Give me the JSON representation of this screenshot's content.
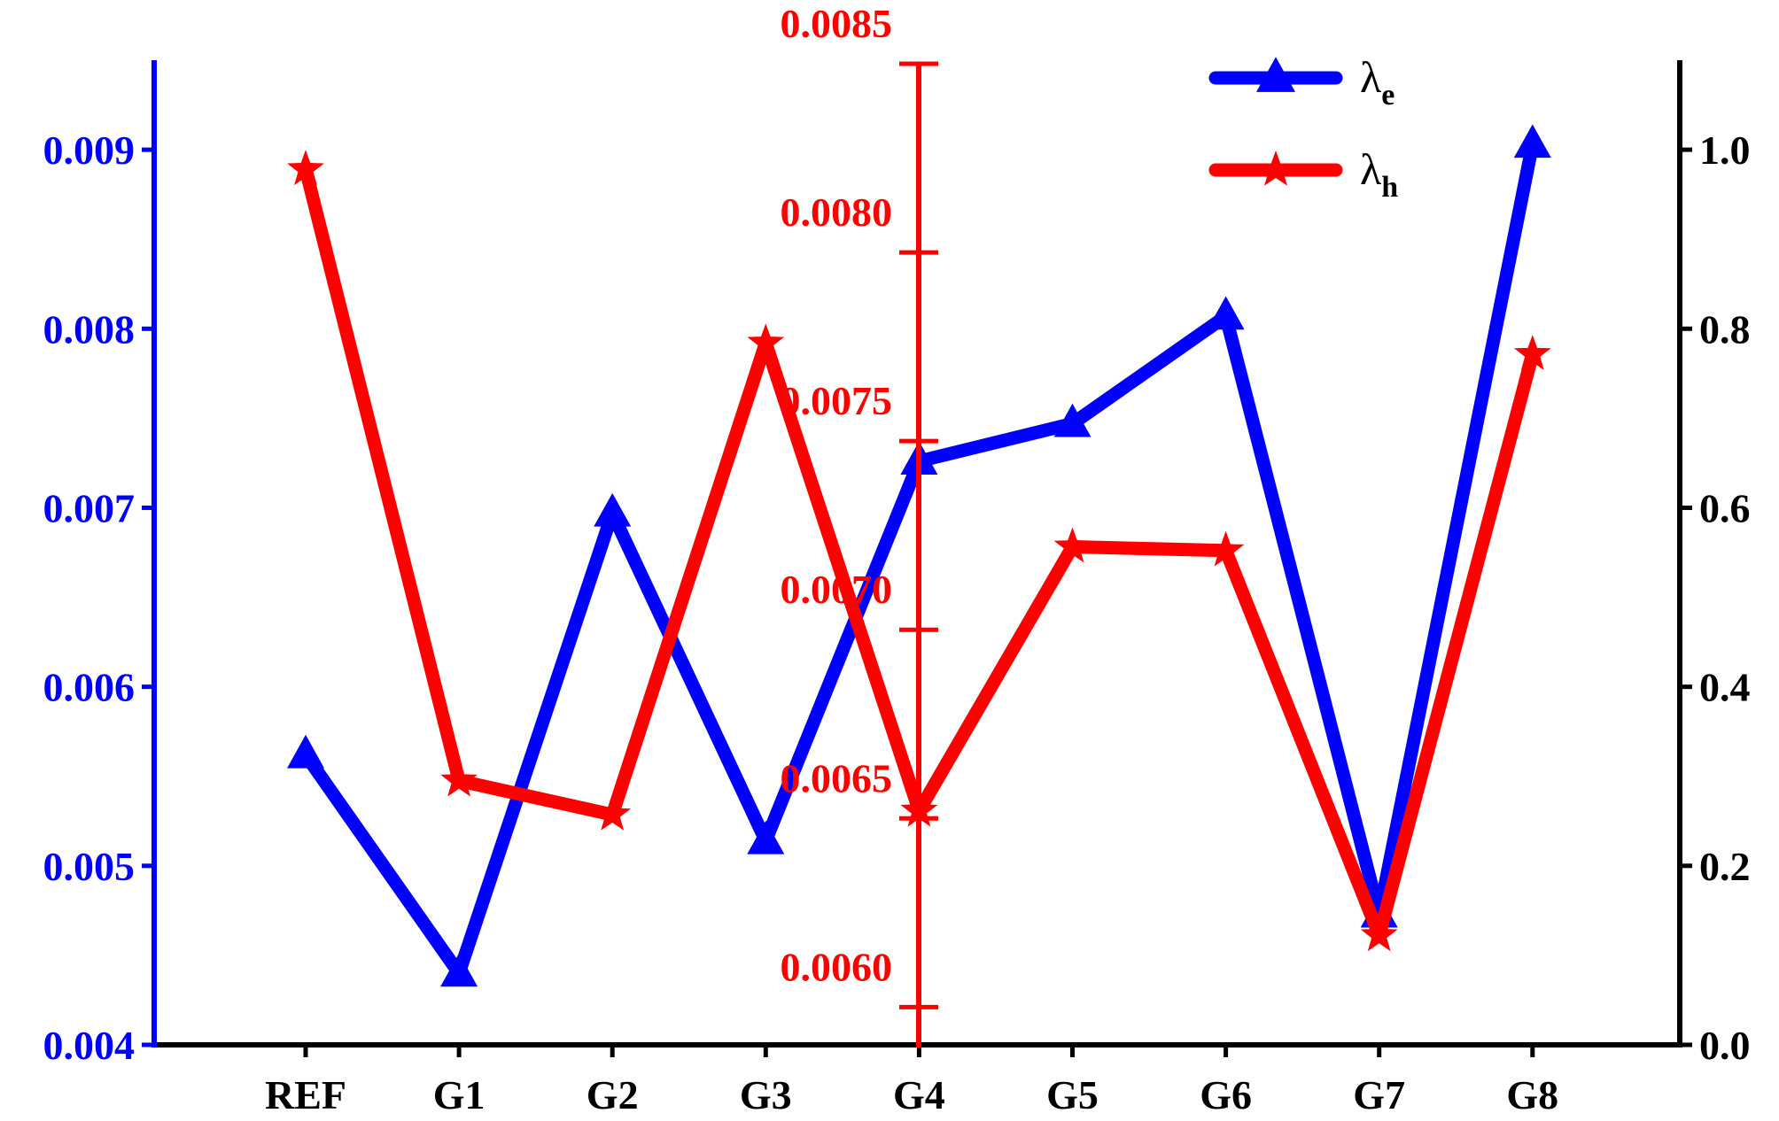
{
  "chart_data": {
    "type": "line",
    "categories": [
      "REF",
      "G1",
      "G2",
      "G3",
      "G4",
      "G5",
      "G6",
      "G7",
      "G8"
    ],
    "series": [
      {
        "name": "λe",
        "name_main": "λ",
        "name_sub": "e",
        "axis": "left",
        "color": "#0000ff",
        "marker": "triangle",
        "values": [
          0.00562,
          0.0044,
          0.00697,
          0.00514,
          0.00726,
          0.00747,
          0.00807,
          0.00473,
          0.00903
        ]
      },
      {
        "name": "λh",
        "name_main": "λ",
        "name_sub": "h",
        "axis": "center",
        "color": "#ff0000",
        "marker": "star",
        "values": [
          0.00822,
          0.0066,
          0.00651,
          0.00776,
          0.00652,
          0.00722,
          0.00721,
          0.00619,
          0.00773
        ]
      }
    ],
    "axes": {
      "left": {
        "color": "#0000ff",
        "min": 0.004,
        "max": 0.0095,
        "ticks": [
          0.004,
          0.005,
          0.006,
          0.007,
          0.008,
          0.009
        ],
        "tick_labels": [
          "0.004",
          "0.005",
          "0.006",
          "0.007",
          "0.008",
          "0.009"
        ]
      },
      "center": {
        "color": "#ff0000",
        "min": 0.0059,
        "max": 0.0085,
        "ticks": [
          0.006,
          0.0065,
          0.007,
          0.0075,
          0.008,
          0.0085
        ],
        "tick_labels": [
          "0.0060",
          "0.0065",
          "0.0070",
          "0.0075",
          "0.0080",
          "0.0085"
        ]
      },
      "right": {
        "color": "#000000",
        "min": 0.0,
        "max": 1.1,
        "ticks": [
          0.0,
          0.2,
          0.4,
          0.6,
          0.8,
          1.0
        ],
        "tick_labels": [
          "0.0",
          "0.2",
          "0.4",
          "0.6",
          "0.8",
          "1.0"
        ]
      }
    },
    "grid": false,
    "legend_position": "top-right"
  }
}
